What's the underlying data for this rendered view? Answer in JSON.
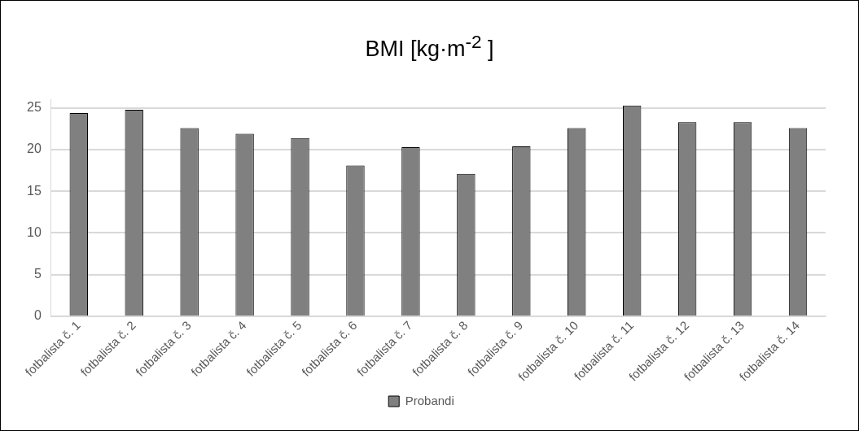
{
  "chart_data": {
    "type": "bar",
    "title": "BMI [kg·m$^{-2}$ ]",
    "categories": [
      "fotbalista č. 1",
      "fotbalista č. 2",
      "fotbalista č. 3",
      "fotbalista č. 4",
      "fotbalista č. 5",
      "fotbalista č. 6",
      "fotbalista č. 7",
      "fotbalista č. 8",
      "fotbalista č. 9",
      "fotbalista č. 10",
      "fotbalista č. 11",
      "fotbalista č. 12",
      "fotbalista č. 13",
      "fotbalista č. 14"
    ],
    "series": [
      {
        "name": "Probandi",
        "color": "#808080",
        "values": [
          24.4,
          24.8,
          22.6,
          21.9,
          21.4,
          18.1,
          20.3,
          17.1,
          20.4,
          22.6,
          25.3,
          23.3,
          23.3,
          22.6
        ]
      }
    ],
    "ylim": [
      0,
      26
    ],
    "yticks": [
      0,
      5,
      10,
      15,
      20,
      25
    ],
    "grid": "y",
    "legend": "bottom"
  }
}
